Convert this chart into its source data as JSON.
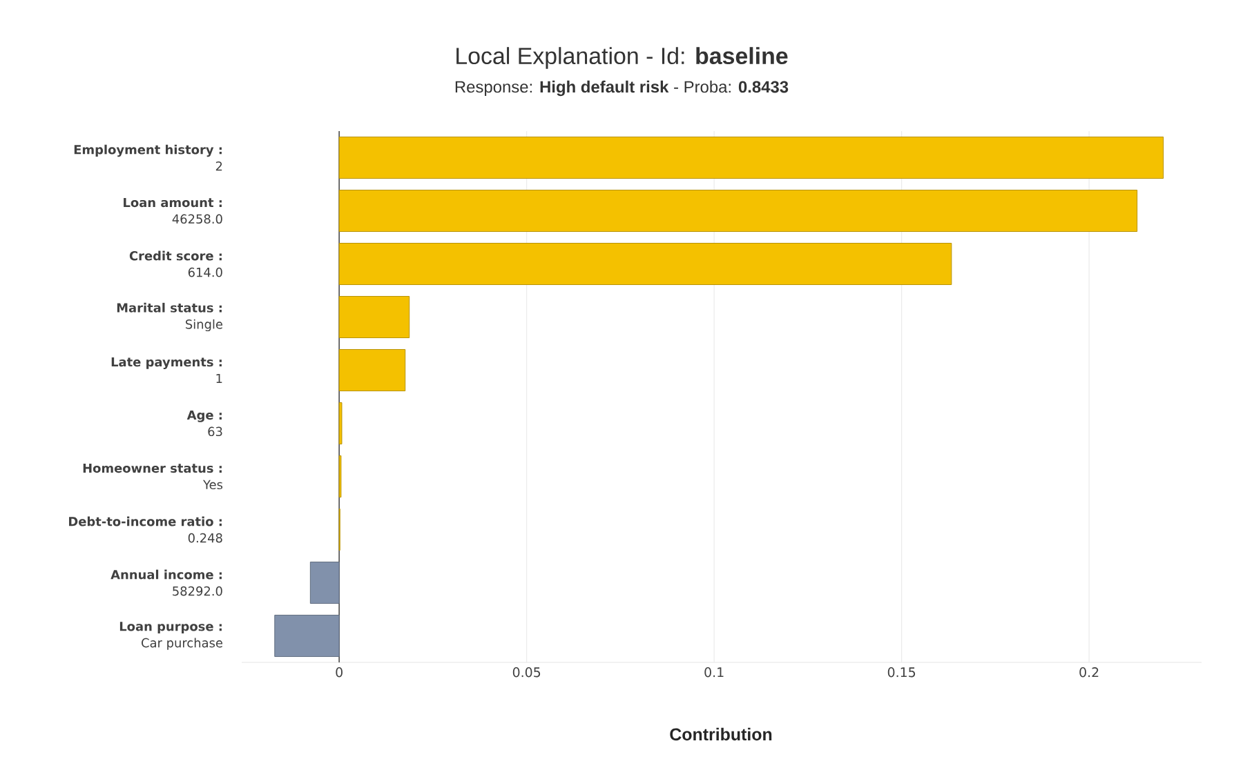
{
  "chart_data": {
    "type": "bar",
    "orientation": "horizontal",
    "title": "Local Explanation - Id: **baseline**",
    "subtitle": "Response: **High default risk** - Proba: **0.8433**",
    "xlabel": "**Contribution**",
    "categories": [
      "**Employment history :**\n2",
      "**Loan amount :**\n46258.0",
      "**Credit score :**\n614.0",
      "**Marital status :**\nSingle",
      "**Late payments :**\n1",
      "**Age :**\n63",
      "**Homeowner status :**\nYes",
      "**Debt-to-income ratio :**\n0.248",
      "**Annual income :**\n58292.0",
      "**Loan purpose :**\nCar purchase"
    ],
    "values": [
      0.2198,
      0.2128,
      0.1633,
      0.0187,
      0.0176,
      0.0007,
      0.0005,
      0.0002,
      -0.0077,
      -0.0172
    ],
    "colors": [
      "#f4c100",
      "#f4c100",
      "#f4c100",
      "#f4c100",
      "#f4c100",
      "#f4c100",
      "#f4c100",
      "#f4c100",
      "#8191ab",
      "#8191ab"
    ],
    "xlim": [
      -0.026,
      0.23
    ],
    "xticks": [
      0,
      0.05,
      0.1,
      0.15,
      0.2
    ],
    "grid": "x"
  }
}
